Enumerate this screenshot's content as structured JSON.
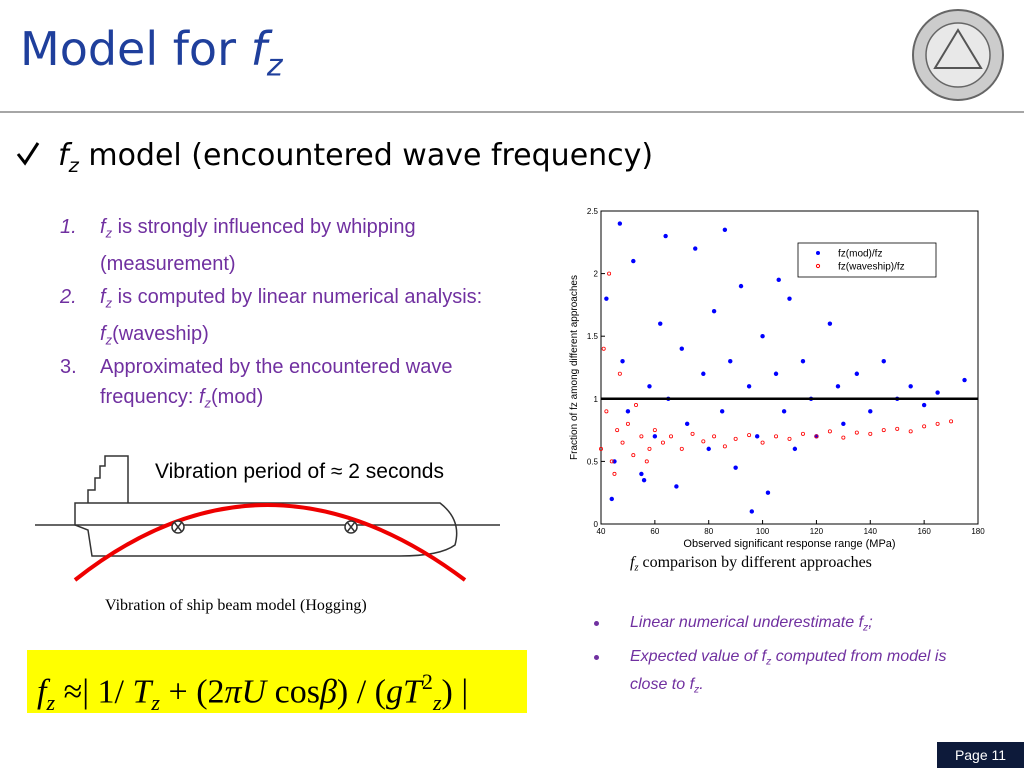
{
  "header": {
    "title": [
      {
        "text": "Model for ",
        "style": "n"
      },
      {
        "text": "f",
        "style": "i"
      },
      {
        "text": "z",
        "style": "isub"
      }
    ]
  },
  "heading": [
    {
      "text": "f",
      "style": "i"
    },
    {
      "text": "z",
      "style": "isub"
    },
    {
      "text": " model (encountered wave frequency)",
      "style": "n"
    }
  ],
  "list": [
    {
      "number": "1.",
      "number_style": "i",
      "parts": [
        {
          "text": "f",
          "style": "i"
        },
        {
          "text": "z",
          "style": "isub"
        },
        {
          "text": "  is strongly influenced by whipping (measurement)",
          "style": "n"
        }
      ]
    },
    {
      "number": "2.",
      "number_style": "i",
      "parts": [
        {
          "text": "f",
          "style": "i"
        },
        {
          "text": "z",
          "style": "isub"
        },
        {
          "text": "  is computed by linear numerical analysis: ",
          "style": "n"
        },
        {
          "text": "f",
          "style": "i"
        },
        {
          "text": "z",
          "style": "isub"
        },
        {
          "text": "(waveship)",
          "style": "n"
        }
      ]
    },
    {
      "number": "3.",
      "number_style": "n",
      "parts": [
        {
          "text": "Approximated by the encountered wave frequency: ",
          "style": "n"
        },
        {
          "text": "f",
          "style": "i"
        },
        {
          "text": "z",
          "style": "isub"
        },
        {
          "text": "(mod)",
          "style": "n"
        }
      ]
    }
  ],
  "diagram": {
    "label": "Vibration period of ≈ 2 seconds",
    "caption": "Vibration of  ship beam model (Hogging)"
  },
  "formula": [
    {
      "text": "f",
      "style": "i"
    },
    {
      "text": "z",
      "style": "isub"
    },
    {
      "text": " ≈| 1/ ",
      "style": "n"
    },
    {
      "text": "T",
      "style": "i"
    },
    {
      "text": "z",
      "style": "isub"
    },
    {
      "text": " + (2",
      "style": "n"
    },
    {
      "text": "πU",
      "style": "i"
    },
    {
      "text": " cos",
      "style": "n"
    },
    {
      "text": "β",
      "style": "i"
    },
    {
      "text": ") / (",
      "style": "n"
    },
    {
      "text": "gT",
      "style": "i"
    },
    {
      "text": "2",
      "style": "sup"
    },
    {
      "text": "z",
      "style": "isub"
    },
    {
      "text": ") |",
      "style": "n"
    }
  ],
  "chart_caption": [
    {
      "text": "f",
      "style": "i"
    },
    {
      "text": "z",
      "style": "isub"
    },
    {
      "text": " comparison by different approaches",
      "style": "n"
    }
  ],
  "bullets": [
    [
      {
        "text": "Linear numerical underestimate f",
        "style": "n"
      },
      {
        "text": "z",
        "style": "sub"
      },
      {
        "text": ";",
        "style": "n"
      }
    ],
    [
      {
        "text": "Expected value of  f",
        "style": "n"
      },
      {
        "text": "z",
        "style": "sub"
      },
      {
        "text": " computed from model is close to f",
        "style": "n"
      },
      {
        "text": "z",
        "style": "sub"
      },
      {
        "text": ".",
        "style": "n"
      }
    ]
  ],
  "footer": {
    "page": "Page 11"
  },
  "chart_data": {
    "type": "scatter",
    "xlabel": "Observed significant response range (MPa)",
    "ylabel": "Fraction of fz among different approaches",
    "xlim": [
      40,
      180
    ],
    "ylim": [
      0,
      2.5
    ],
    "xticks": [
      40,
      60,
      80,
      100,
      120,
      140,
      160,
      180
    ],
    "yticks": [
      0,
      0.5,
      1,
      1.5,
      2,
      2.5
    ],
    "hline": 1,
    "legend": "upper right",
    "series": [
      {
        "name": "fz(mod)/fz",
        "color": "#0000ff",
        "x": [
          42,
          45,
          48,
          50,
          52,
          55,
          58,
          60,
          62,
          65,
          68,
          70,
          72,
          75,
          78,
          80,
          82,
          85,
          88,
          90,
          92,
          95,
          98,
          100,
          102,
          105,
          108,
          110,
          112,
          115,
          118,
          120,
          125,
          128,
          130,
          135,
          140,
          145,
          150,
          155,
          160,
          165,
          175,
          44,
          47,
          56,
          64,
          86,
          96,
          106
        ],
        "y": [
          1.8,
          0.5,
          1.3,
          0.9,
          2.1,
          0.4,
          1.1,
          0.7,
          1.6,
          1.0,
          0.3,
          1.4,
          0.8,
          2.2,
          1.2,
          0.6,
          1.7,
          0.9,
          1.3,
          0.45,
          1.9,
          1.1,
          0.7,
          1.5,
          0.25,
          1.2,
          0.9,
          1.8,
          0.6,
          1.3,
          1.0,
          0.7,
          1.6,
          1.1,
          0.8,
          1.2,
          0.9,
          1.3,
          1.0,
          1.1,
          0.95,
          1.05,
          1.15,
          0.2,
          2.4,
          0.35,
          2.3,
          2.35,
          0.1,
          1.95
        ]
      },
      {
        "name": "fz(waveship)/fz",
        "color": "#ff0000",
        "x": [
          40,
          42,
          44,
          46,
          48,
          50,
          52,
          55,
          58,
          60,
          63,
          66,
          70,
          74,
          78,
          82,
          86,
          90,
          95,
          100,
          105,
          110,
          115,
          120,
          125,
          130,
          135,
          140,
          145,
          150,
          155,
          160,
          165,
          170,
          41,
          43,
          45,
          47,
          53,
          57
        ],
        "y": [
          0.6,
          0.9,
          0.5,
          0.75,
          0.65,
          0.8,
          0.55,
          0.7,
          0.6,
          0.75,
          0.65,
          0.7,
          0.6,
          0.72,
          0.66,
          0.7,
          0.62,
          0.68,
          0.71,
          0.65,
          0.7,
          0.68,
          0.72,
          0.7,
          0.74,
          0.69,
          0.73,
          0.72,
          0.75,
          0.76,
          0.74,
          0.78,
          0.8,
          0.82,
          1.4,
          2.0,
          0.4,
          1.2,
          0.95,
          0.5
        ]
      }
    ]
  }
}
